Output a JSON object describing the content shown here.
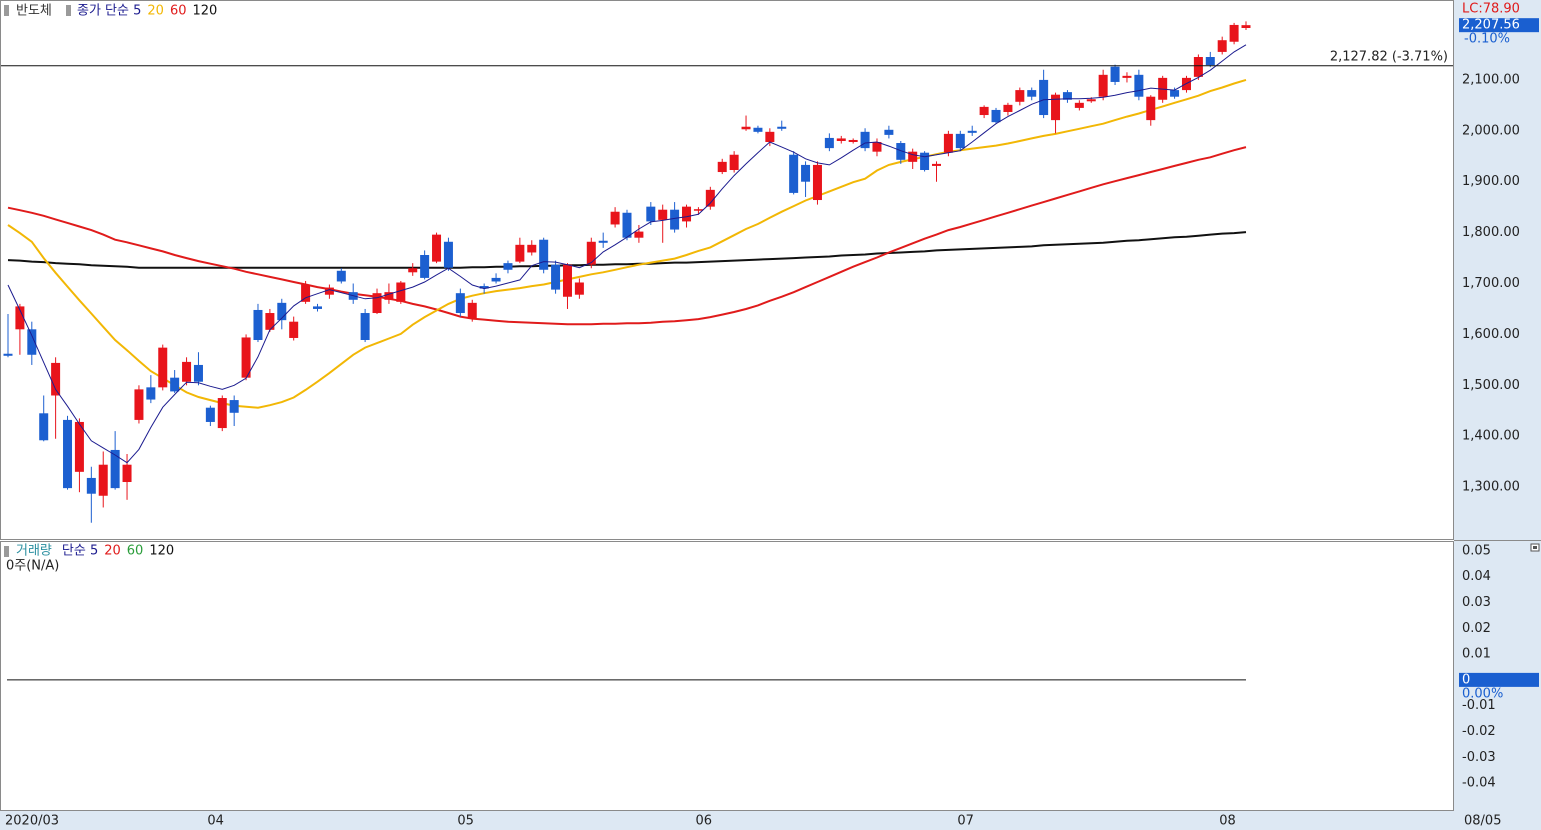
{
  "chart_data": [
    {
      "type": "candlestick",
      "title": "반도체",
      "categories": [
        "2020/03",
        null,
        null,
        null,
        null,
        null,
        null,
        null,
        null,
        null,
        null,
        null,
        null,
        null,
        null,
        null,
        null,
        "04",
        null,
        null,
        null,
        null,
        null,
        null,
        null,
        null,
        null,
        null,
        null,
        null,
        null,
        null,
        null,
        null,
        null,
        null,
        null,
        null,
        "05",
        null,
        null,
        null,
        null,
        null,
        null,
        null,
        null,
        null,
        null,
        null,
        null,
        null,
        null,
        null,
        null,
        null,
        null,
        null,
        "06",
        null,
        null,
        null,
        null,
        null,
        null,
        null,
        null,
        null,
        null,
        null,
        null,
        null,
        null,
        null,
        null,
        null,
        null,
        null,
        null,
        null,
        "07",
        null,
        null,
        null,
        null,
        null,
        null,
        null,
        null,
        null,
        null,
        null,
        null,
        null,
        null,
        null,
        null,
        null,
        null,
        null,
        null,
        null,
        "08",
        null,
        null
      ],
      "open": [
        1562,
        1610,
        1610,
        1445,
        1480,
        1432,
        1330,
        1318,
        1283,
        1373,
        1310,
        1432,
        1496,
        1496,
        1515,
        1507,
        1540,
        1456,
        1416,
        1471,
        1515,
        1648,
        1609,
        1662,
        1593,
        1664,
        1655,
        1678,
        1725,
        1683,
        1642,
        1642,
        1668,
        1664,
        1722,
        1756,
        1743,
        1782,
        1681,
        1632,
        1695,
        1711,
        1740,
        1743,
        1761,
        1786,
        1737,
        1674,
        1678,
        1737,
        1784,
        1816,
        1839,
        1790,
        1851,
        1825,
        1845,
        1822,
        1843,
        1851,
        1919,
        1923,
        2003,
        2006,
        1978,
        2008,
        1953,
        1933,
        1864,
        1986,
        1980,
        1978,
        1998,
        1959,
        2002,
        1976,
        1939,
        1957,
        1931,
        1957,
        1994,
        2000,
        2031,
        2041,
        2037,
        2057,
        2080,
        2100,
        2021,
        2076,
        2045,
        2058,
        2067,
        2126,
        2104,
        2110,
        2021,
        2061,
        2080,
        2080,
        2106,
        2145,
        2155,
        2175,
        2202
      ],
      "high": [
        1640,
        1660,
        1625,
        1480,
        1555,
        1440,
        1435,
        1340,
        1370,
        1410,
        1365,
        1500,
        1520,
        1580,
        1530,
        1555,
        1565,
        1460,
        1480,
        1480,
        1600,
        1660,
        1650,
        1670,
        1635,
        1705,
        1660,
        1698,
        1730,
        1700,
        1650,
        1690,
        1700,
        1705,
        1740,
        1765,
        1800,
        1790,
        1690,
        1668,
        1700,
        1720,
        1745,
        1790,
        1785,
        1790,
        1745,
        1740,
        1710,
        1790,
        1800,
        1850,
        1845,
        1815,
        1860,
        1855,
        1860,
        1855,
        1850,
        1890,
        1945,
        1960,
        2030,
        2010,
        2005,
        2020,
        1960,
        1940,
        1940,
        1995,
        1990,
        1985,
        2005,
        1985,
        2010,
        1980,
        1965,
        1960,
        1940,
        2000,
        2000,
        2010,
        2050,
        2045,
        2055,
        2085,
        2085,
        2120,
        2075,
        2080,
        2060,
        2066,
        2120,
        2130,
        2115,
        2120,
        2070,
        2108,
        2085,
        2108,
        2150,
        2155,
        2185,
        2212,
        2215
      ],
      "low": [
        1555,
        1560,
        1540,
        1390,
        1395,
        1295,
        1290,
        1230,
        1260,
        1295,
        1275,
        1425,
        1465,
        1490,
        1485,
        1500,
        1500,
        1420,
        1410,
        1420,
        1510,
        1585,
        1605,
        1610,
        1588,
        1660,
        1645,
        1670,
        1700,
        1660,
        1585,
        1640,
        1660,
        1660,
        1715,
        1708,
        1740,
        1725,
        1635,
        1625,
        1680,
        1700,
        1720,
        1740,
        1755,
        1720,
        1680,
        1650,
        1670,
        1730,
        1770,
        1810,
        1785,
        1780,
        1815,
        1780,
        1800,
        1810,
        1835,
        1845,
        1915,
        1918,
        2000,
        1995,
        1970,
        2000,
        1875,
        1870,
        1855,
        1960,
        1975,
        1975,
        1960,
        1950,
        1985,
        1935,
        1925,
        1920,
        1900,
        1950,
        1960,
        1990,
        2025,
        2015,
        2030,
        2050,
        2060,
        2025,
        1995,
        2055,
        2040,
        2055,
        2060,
        2090,
        2095,
        2060,
        2010,
        2055,
        2063,
        2075,
        2100,
        2125,
        2150,
        2170,
        2198
      ],
      "close": [
        1558,
        1655,
        1560,
        1392,
        1544,
        1298,
        1428,
        1287,
        1344,
        1298,
        1344,
        1492,
        1472,
        1574,
        1488,
        1546,
        1507,
        1428,
        1475,
        1446,
        1594,
        1589,
        1642,
        1628,
        1625,
        1698,
        1650,
        1692,
        1704,
        1668,
        1589,
        1681,
        1683,
        1702,
        1730,
        1711,
        1796,
        1731,
        1642,
        1662,
        1690,
        1704,
        1727,
        1776,
        1776,
        1727,
        1688,
        1737,
        1702,
        1782,
        1780,
        1841,
        1790,
        1802,
        1822,
        1845,
        1806,
        1851,
        1846,
        1884,
        1939,
        1953,
        2008,
        1998,
        1998,
        2004,
        1878,
        1900,
        1933,
        1966,
        1985,
        1982,
        1966,
        1978,
        1992,
        1943,
        1959,
        1923,
        1935,
        1994,
        1966,
        1996,
        2047,
        2017,
        2051,
        2080,
        2067,
        2031,
        2071,
        2061,
        2055,
        2062,
        2110,
        2096,
        2108,
        2067,
        2067,
        2104,
        2067,
        2104,
        2145,
        2129,
        2178,
        2208,
        2207.56
      ],
      "up_color": "#e8141b",
      "down_color": "#1c5fd0",
      "series": [
        {
          "name": "종가 단순 5",
          "color": "#1c1c8f",
          "values": [
            1697,
            1648,
            1598,
            1545,
            1492,
            1459,
            1424,
            1391,
            1377,
            1363,
            1348,
            1374,
            1417,
            1457,
            1482,
            1506,
            1505,
            1498,
            1492,
            1500,
            1514,
            1556,
            1609,
            1632,
            1656,
            1672,
            1680,
            1688,
            1682,
            1676,
            1670,
            1672,
            1679,
            1686,
            1693,
            1703,
            1717,
            1730,
            1714,
            1697,
            1690,
            1695,
            1701,
            1707,
            1735,
            1743,
            1742,
            1737,
            1731,
            1741,
            1762,
            1776,
            1791,
            1807,
            1821,
            1824,
            1828,
            1831,
            1836,
            1858,
            1886,
            1912,
            1935,
            1957,
            1978,
            1968,
            1958,
            1945,
            1937,
            1933,
            1947,
            1962,
            1976,
            1978,
            1970,
            1961,
            1953,
            1949,
            1953,
            1957,
            1961,
            1978,
            1996,
            2014,
            2028,
            2040,
            2052,
            2061,
            2062,
            2063,
            2063,
            2064,
            2066,
            2070,
            2075,
            2079,
            2084,
            2082,
            2080,
            2093,
            2105,
            2119,
            2137,
            2155,
            2169
          ]
        },
        {
          "name": "20",
          "color": "#f2b705",
          "values": [
            1815,
            1799,
            1782,
            1750,
            1721,
            1694,
            1667,
            1641,
            1615,
            1589,
            1569,
            1548,
            1528,
            1514,
            1500,
            1486,
            1477,
            1471,
            1465,
            1460,
            1458,
            1456,
            1461,
            1467,
            1476,
            1491,
            1507,
            1524,
            1542,
            1560,
            1574,
            1583,
            1592,
            1601,
            1619,
            1634,
            1647,
            1660,
            1670,
            1676,
            1681,
            1685,
            1688,
            1691,
            1695,
            1698,
            1703,
            1708,
            1713,
            1718,
            1722,
            1727,
            1732,
            1737,
            1741,
            1745,
            1749,
            1756,
            1764,
            1771,
            1783,
            1795,
            1807,
            1817,
            1829,
            1841,
            1852,
            1863,
            1872,
            1881,
            1890,
            1899,
            1906,
            1922,
            1933,
            1939,
            1944,
            1949,
            1954,
            1959,
            1962,
            1965,
            1968,
            1971,
            1975,
            1980,
            1985,
            1990,
            1994,
            1999,
            2004,
            2009,
            2014,
            2021,
            2028,
            2034,
            2041,
            2048,
            2055,
            2062,
            2069,
            2078,
            2085,
            2093,
            2100
          ]
        },
        {
          "name": "60",
          "color": "#e01b1b",
          "values": [
            1849,
            1844,
            1839,
            1833,
            1826,
            1819,
            1812,
            1805,
            1796,
            1786,
            1781,
            1775,
            1769,
            1763,
            1756,
            1750,
            1744,
            1739,
            1734,
            1729,
            1723,
            1718,
            1713,
            1708,
            1703,
            1698,
            1693,
            1689,
            1684,
            1680,
            1677,
            1674,
            1670,
            1666,
            1660,
            1655,
            1649,
            1642,
            1635,
            1631,
            1629,
            1627,
            1625,
            1624,
            1623,
            1622,
            1621,
            1620,
            1620,
            1620,
            1621,
            1621,
            1622,
            1622,
            1623,
            1625,
            1626,
            1628,
            1630,
            1634,
            1639,
            1644,
            1650,
            1657,
            1666,
            1674,
            1683,
            1693,
            1703,
            1713,
            1723,
            1733,
            1742,
            1751,
            1761,
            1770,
            1779,
            1788,
            1796,
            1805,
            1811,
            1818,
            1825,
            1832,
            1839,
            1846,
            1853,
            1860,
            1867,
            1874,
            1881,
            1888,
            1895,
            1901,
            1907,
            1913,
            1919,
            1925,
            1931,
            1937,
            1943,
            1948,
            1955,
            1962,
            1968
          ]
        },
        {
          "name": "120",
          "color": "#111111",
          "values": [
            1746,
            1745,
            1743,
            1742,
            1740,
            1739,
            1738,
            1736,
            1735,
            1734,
            1733,
            1731,
            1731,
            1731,
            1731,
            1731,
            1731,
            1731,
            1731,
            1731,
            1731,
            1731,
            1731,
            1731,
            1731,
            1731,
            1731,
            1731,
            1731,
            1731,
            1731,
            1731,
            1731,
            1731,
            1731,
            1731,
            1731,
            1731,
            1731,
            1732,
            1732,
            1733,
            1733,
            1734,
            1734,
            1735,
            1735,
            1736,
            1736,
            1737,
            1737,
            1738,
            1738,
            1739,
            1739,
            1740,
            1741,
            1741,
            1742,
            1743,
            1744,
            1745,
            1746,
            1747,
            1748,
            1749,
            1750,
            1751,
            1752,
            1753,
            1755,
            1756,
            1757,
            1759,
            1760,
            1761,
            1762,
            1763,
            1765,
            1766,
            1767,
            1768,
            1769,
            1770,
            1771,
            1772,
            1773,
            1775,
            1776,
            1777,
            1778,
            1779,
            1780,
            1782,
            1784,
            1785,
            1787,
            1789,
            1791,
            1792,
            1794,
            1796,
            1798,
            1799,
            1801
          ]
        }
      ],
      "ylim": [
        1200,
        2257
      ],
      "yticks": [
        {
          "value": 1300,
          "label": "1,300.00"
        },
        {
          "value": 1400,
          "label": "1,400.00"
        },
        {
          "value": 1500,
          "label": "1,500.00"
        },
        {
          "value": 1600,
          "label": "1,600.00"
        },
        {
          "value": 1700,
          "label": "1,700.00"
        },
        {
          "value": 1800,
          "label": "1,800.00"
        },
        {
          "value": 1900,
          "label": "1,900.00"
        },
        {
          "value": 2000,
          "label": "2,000.00"
        },
        {
          "value": 2100,
          "label": "2,100.00"
        }
      ],
      "grid": true,
      "ref_line": {
        "value": 2127.82,
        "label": "2,127.82 (-3.71%)"
      },
      "last_price": {
        "value": 2207.56,
        "label": "2,207.56"
      },
      "lc_label": "LC:78.90",
      "change_label": "-0.10%",
      "cursor_date": "08/05"
    },
    {
      "type": "volume",
      "title": "거래량",
      "title_color": "#2a8fa0",
      "note": "0주(N/A)",
      "series": [
        {
          "name": "단순 5",
          "color": "#1c1c8f"
        },
        {
          "name": "20",
          "color": "#e01b1b"
        },
        {
          "name": "60",
          "color": "#2a9d3a"
        },
        {
          "name": "120",
          "color": "#111111"
        }
      ],
      "ylim": [
        -0.0504,
        0.0538
      ],
      "yticks": [
        0.05,
        0.04,
        0.03,
        0.02,
        0.01,
        0,
        -0.01,
        -0.02,
        -0.03,
        -0.04
      ],
      "baseline": 0,
      "baseline_label": "0.00%",
      "grid": true
    }
  ]
}
